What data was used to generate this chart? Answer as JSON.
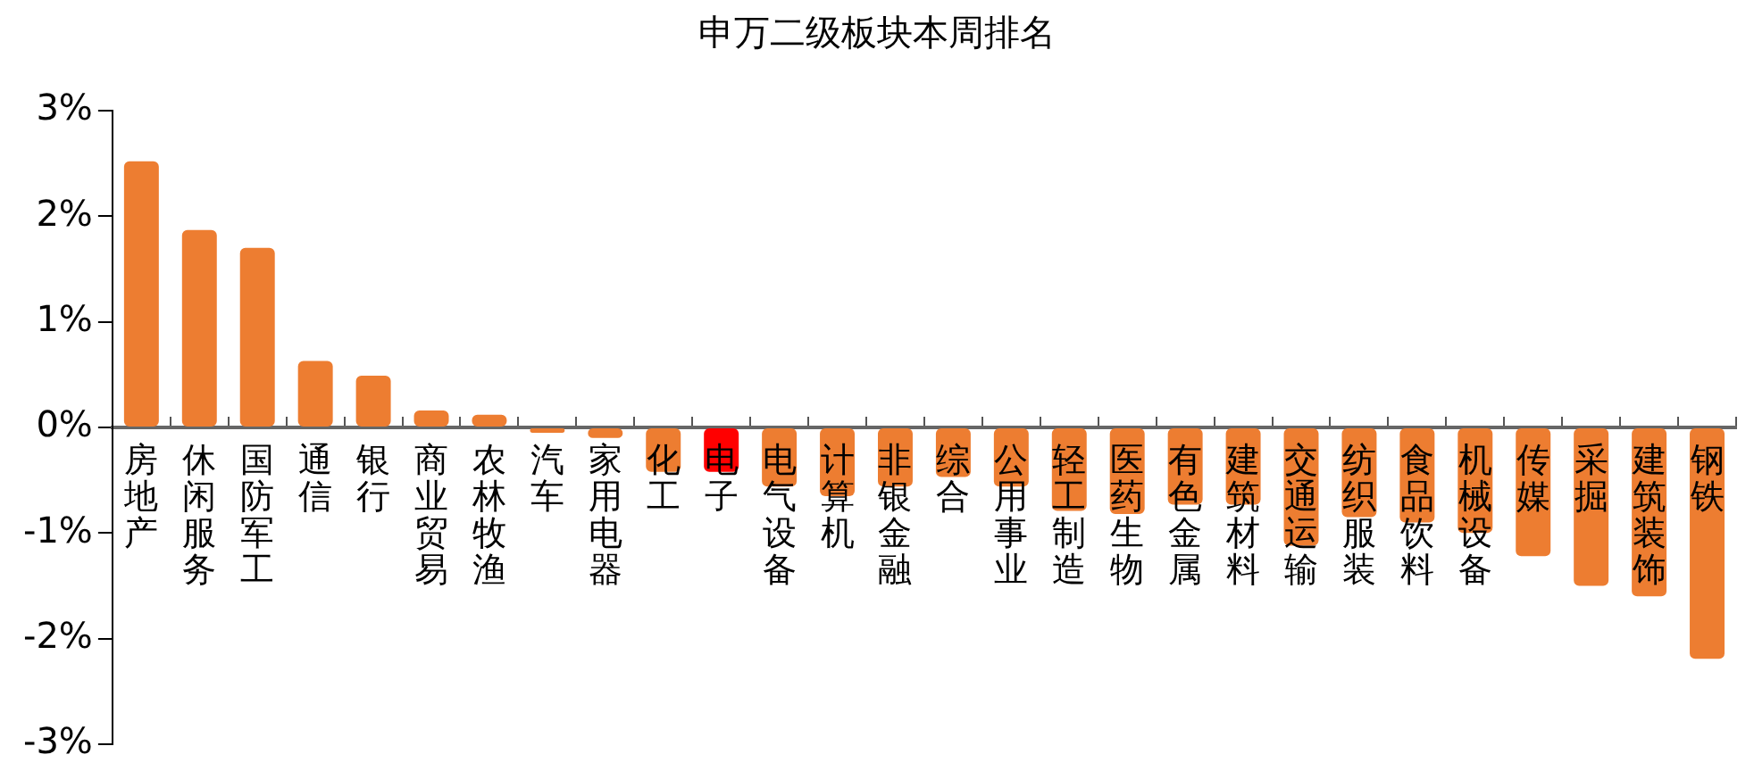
{
  "chart_data": {
    "type": "bar",
    "title": "申万二级板块本周排名",
    "categories": [
      "房地产",
      "休闲服务",
      "国防军工",
      "通信",
      "银行",
      "商业贸易",
      "农林牧渔",
      "汽车",
      "家用电器",
      "化工",
      "电子",
      "电气设备",
      "计算机",
      "非银金融",
      "综合",
      "公用事业",
      "轻工制造",
      "医药生物",
      "有色金属",
      "建筑材料",
      "交通运输",
      "纺织服装",
      "食品饮料",
      "机械设备",
      "传媒",
      "采掘",
      "建筑装饰",
      "钢铁"
    ],
    "values": [
      2.52,
      1.87,
      1.7,
      0.63,
      0.49,
      0.16,
      0.12,
      -0.05,
      -0.1,
      -0.42,
      -0.42,
      -0.56,
      -0.65,
      -0.56,
      -0.47,
      -0.56,
      -0.79,
      -0.82,
      -0.73,
      -0.73,
      -1.12,
      -0.85,
      -0.9,
      -1.0,
      -1.22,
      -1.5,
      -1.6,
      -2.19
    ],
    "colors": [
      "#ed7d31",
      "#ed7d31",
      "#ed7d31",
      "#ed7d31",
      "#ed7d31",
      "#ed7d31",
      "#ed7d31",
      "#ed7d31",
      "#ed7d31",
      "#ed7d31",
      "#ff0000",
      "#ed7d31",
      "#ed7d31",
      "#ed7d31",
      "#ed7d31",
      "#ed7d31",
      "#ed7d31",
      "#ed7d31",
      "#ed7d31",
      "#ed7d31",
      "#ed7d31",
      "#ed7d31",
      "#ed7d31",
      "#ed7d31",
      "#ed7d31",
      "#ed7d31",
      "#ed7d31",
      "#ed7d31"
    ],
    "ylim": [
      -3,
      3
    ],
    "yticks": [
      {
        "value": -3,
        "label": "-3%"
      },
      {
        "value": -2,
        "label": "-2%"
      },
      {
        "value": -1,
        "label": "-1%"
      },
      {
        "value": 0,
        "label": "0%"
      },
      {
        "value": 1,
        "label": "1%"
      },
      {
        "value": 2,
        "label": "2%"
      },
      {
        "value": 3,
        "label": "3%"
      }
    ],
    "grid": false,
    "legend": false
  }
}
